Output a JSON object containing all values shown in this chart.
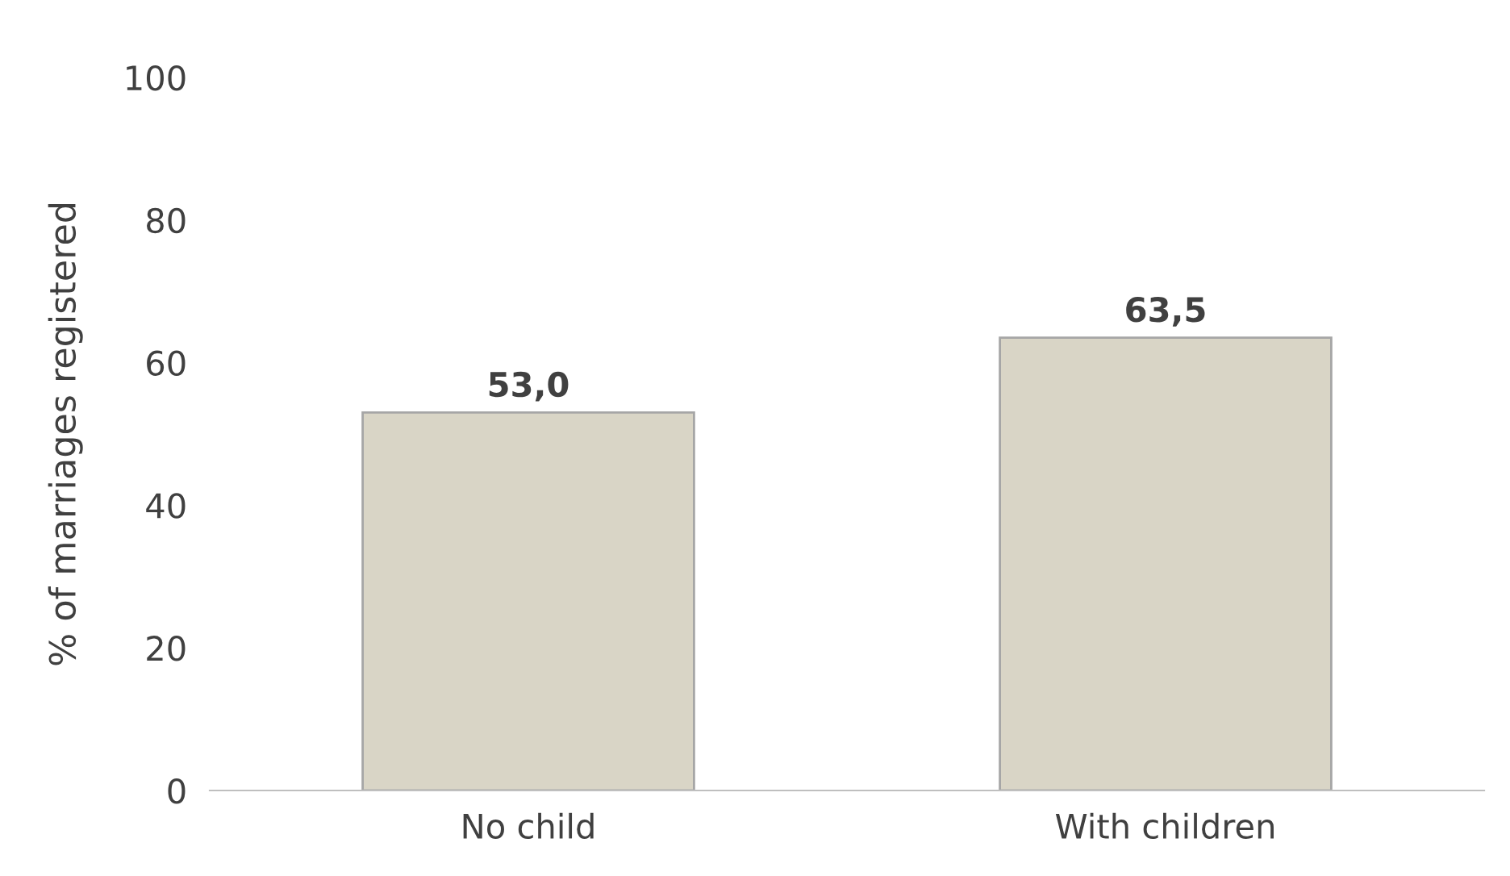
{
  "chart_data": {
    "type": "bar",
    "ylabel": "% of marriages registered",
    "categories": [
      "No child",
      "With children"
    ],
    "values": [
      53.0,
      63.5
    ],
    "value_labels": [
      "53,0",
      "63,5"
    ],
    "color": "#d9d5c6",
    "ylim": [
      0,
      100
    ],
    "yticks": [
      0,
      20,
      40,
      60,
      80,
      100
    ],
    "grid": false
  }
}
